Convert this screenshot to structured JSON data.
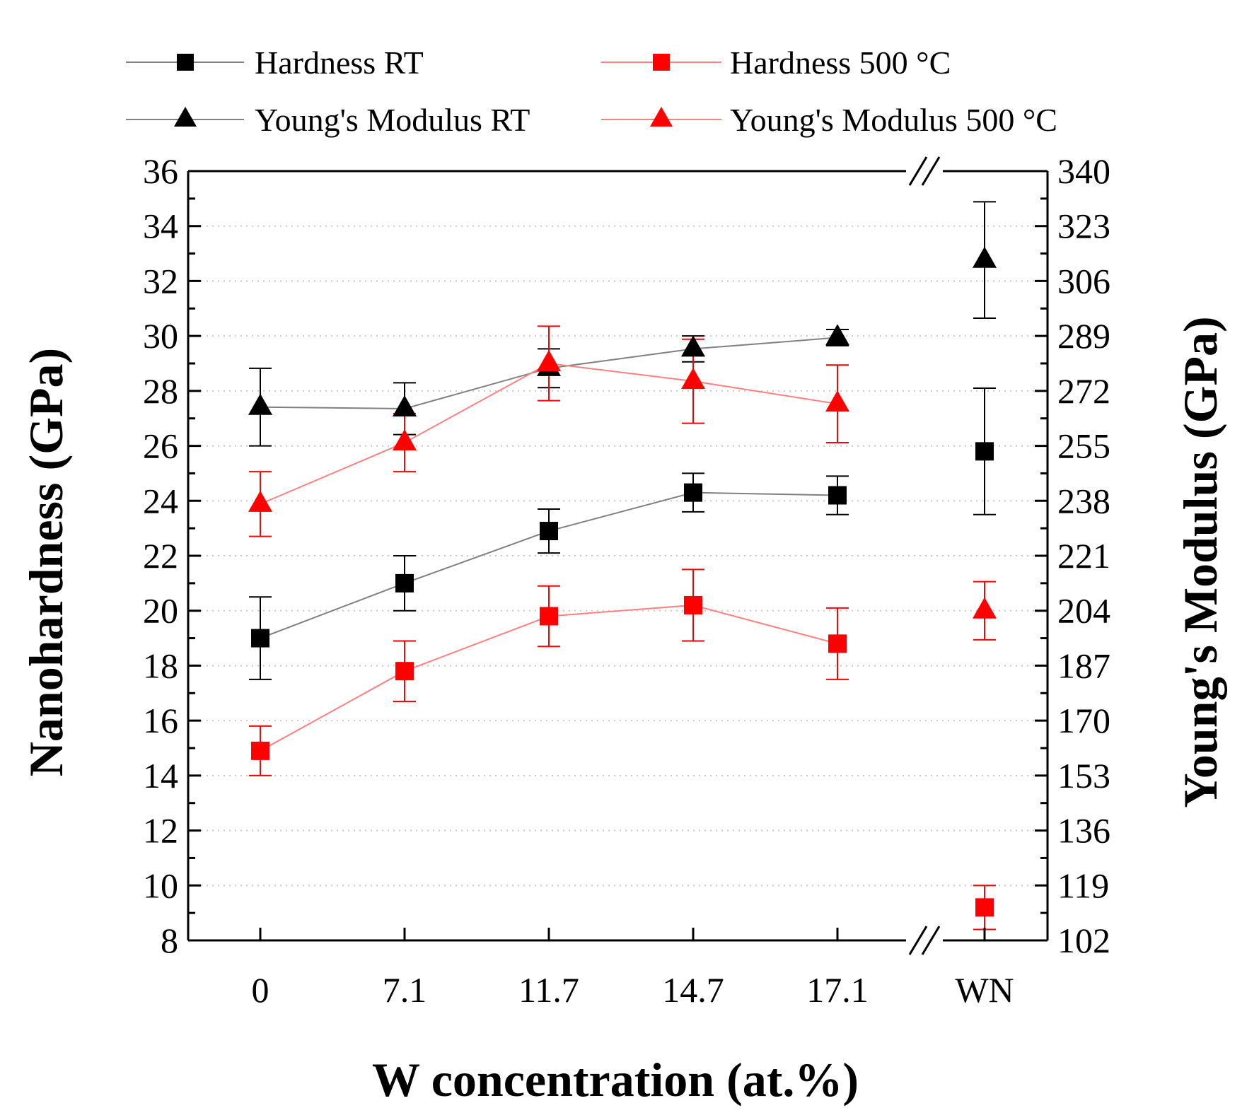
{
  "chart_data": {
    "type": "line",
    "categories": [
      "0",
      "7.1",
      "11.7",
      "14.7",
      "17.1",
      "WN"
    ],
    "xlabel": "W concentration (at.%)",
    "ylabel": "Nanohardness (GPa)",
    "y2label": "Young's Modulus (GPa)",
    "ylim": [
      8,
      36
    ],
    "y2lim": [
      102,
      340
    ],
    "yticks": [
      "8",
      "10",
      "12",
      "14",
      "16",
      "18",
      "20",
      "22",
      "24",
      "26",
      "28",
      "30",
      "32",
      "34",
      "36"
    ],
    "y2ticks": [
      "102",
      "119",
      "136",
      "153",
      "170",
      "187",
      "204",
      "221",
      "238",
      "255",
      "272",
      "289",
      "306",
      "323",
      "340"
    ],
    "grid": true,
    "axis_break": "between 17.1 and WN",
    "legend_position": "top",
    "series": [
      {
        "name": "Hardness RT",
        "color": "#000000",
        "marker": "square",
        "axis": "left",
        "values": [
          19.0,
          21.0,
          22.9,
          24.3,
          24.2,
          25.8
        ],
        "errors": [
          1.5,
          1.0,
          0.8,
          0.7,
          0.7,
          2.3
        ]
      },
      {
        "name": "Hardness 500 °C",
        "color": "#ff0000",
        "marker": "square",
        "axis": "left",
        "values": [
          14.9,
          17.8,
          19.8,
          20.2,
          18.8,
          9.2
        ],
        "errors": [
          0.9,
          1.1,
          1.1,
          1.3,
          1.3,
          0.8
        ]
      },
      {
        "name": "Young's Modulus RT",
        "color": "#000000",
        "marker": "triangle",
        "axis": "right",
        "values": [
          267.0,
          266.5,
          279.0,
          285.0,
          288.5,
          312.5
        ],
        "errors": [
          12.0,
          8.0,
          6.0,
          4.0,
          2.5,
          18.0
        ]
      },
      {
        "name": "Young's Modulus 500 °C",
        "color": "#ff0000",
        "marker": "triangle",
        "axis": "right",
        "values": [
          237.0,
          256.0,
          280.5,
          275.0,
          268.0,
          204.0
        ],
        "errors": [
          10.0,
          9.0,
          11.5,
          13.0,
          12.0,
          9.0
        ]
      }
    ]
  }
}
